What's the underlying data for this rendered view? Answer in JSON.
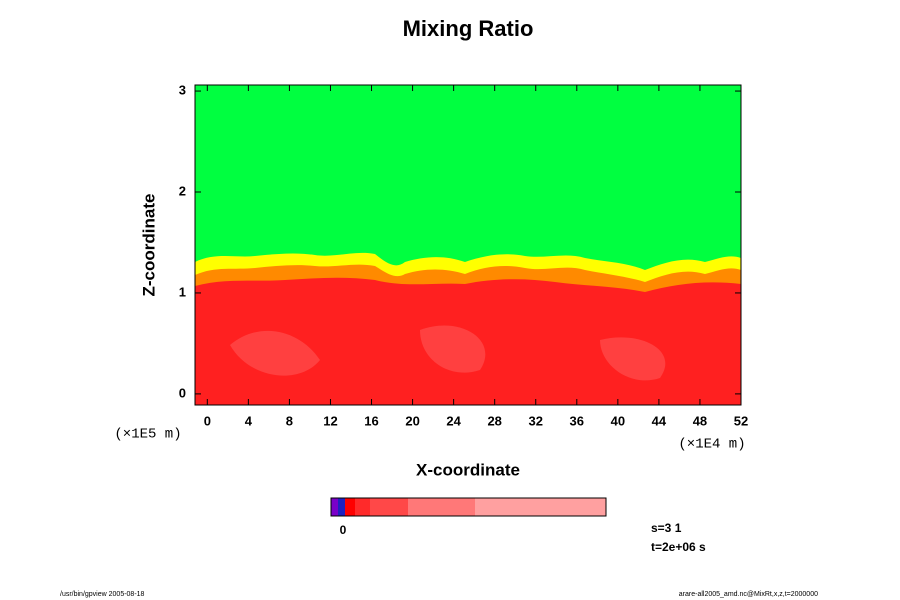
{
  "chart_data": {
    "type": "contour",
    "title": "Mixing Ratio",
    "x_label": "X-coordinate",
    "y_label": "Z-coordinate",
    "x_unit": "(×1E4 m)",
    "y_unit": "(×1E5 m)",
    "xlim": [
      -1.2,
      52
    ],
    "ylim": [
      -0.11,
      3.06
    ],
    "xticks": [
      0,
      4,
      8,
      12,
      16,
      20,
      24,
      28,
      32,
      36,
      40,
      44,
      48,
      52
    ],
    "yticks": [
      0,
      1,
      2,
      3
    ],
    "colorbar_label": "0",
    "info": [
      "s=3 1",
      "t=2e+06 s"
    ],
    "footer_left": "/usr/bin/gpview 2005-08-18",
    "footer_right": "arare-all2005_amd.nc@MixRt,x,z,t=2000000"
  }
}
